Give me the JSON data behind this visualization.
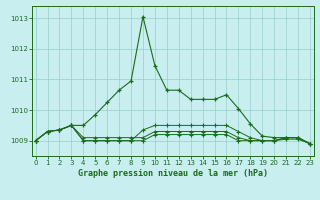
{
  "title": "Graphe pression niveau de la mer (hPa)",
  "background_color": "#c8eef0",
  "grid_color": "#99cccc",
  "line_color": "#1a6b1a",
  "ylim": [
    1008.5,
    1013.4
  ],
  "xlim": [
    -0.3,
    23.3
  ],
  "yticks": [
    1009,
    1010,
    1011,
    1012,
    1013
  ],
  "xticks": [
    0,
    1,
    2,
    3,
    4,
    5,
    6,
    7,
    8,
    9,
    10,
    11,
    12,
    13,
    14,
    15,
    16,
    17,
    18,
    19,
    20,
    21,
    22,
    23
  ],
  "main_y": [
    1009.0,
    1009.3,
    1009.35,
    1009.5,
    1009.5,
    1009.85,
    1010.25,
    1010.65,
    1010.95,
    1013.05,
    1011.45,
    1010.65,
    1010.65,
    1010.35,
    1010.35,
    1010.35,
    1010.5,
    1010.05,
    1009.55,
    1009.15,
    1009.1,
    1009.1,
    1009.1,
    1008.9
  ],
  "flat1_y": [
    1009.0,
    1009.3,
    1009.35,
    1009.5,
    1009.0,
    1009.0,
    1009.0,
    1009.0,
    1009.0,
    1009.35,
    1009.5,
    1009.5,
    1009.5,
    1009.5,
    1009.5,
    1009.5,
    1009.5,
    1009.3,
    1009.1,
    1009.0,
    1009.0,
    1009.1,
    1009.1,
    1008.9
  ],
  "flat2_y": [
    1009.0,
    1009.3,
    1009.35,
    1009.5,
    1009.1,
    1009.1,
    1009.1,
    1009.1,
    1009.1,
    1009.1,
    1009.3,
    1009.3,
    1009.3,
    1009.3,
    1009.3,
    1009.3,
    1009.3,
    1009.1,
    1009.0,
    1009.0,
    1009.0,
    1009.1,
    1009.1,
    1008.9
  ],
  "flat3_y": [
    1009.0,
    1009.3,
    1009.35,
    1009.5,
    1009.0,
    1009.0,
    1009.0,
    1009.0,
    1009.0,
    1009.0,
    1009.2,
    1009.2,
    1009.2,
    1009.2,
    1009.2,
    1009.2,
    1009.2,
    1009.0,
    1009.0,
    1009.0,
    1009.0,
    1009.05,
    1009.05,
    1008.9
  ],
  "title_fontsize": 6,
  "tick_fontsize": 5
}
